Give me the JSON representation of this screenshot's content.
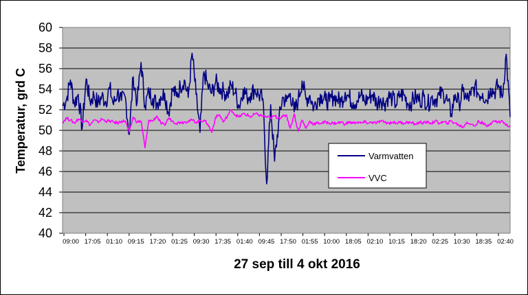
{
  "chart_data": {
    "type": "line",
    "title": "",
    "xlabel": "27 sep till 4 okt 2016",
    "ylabel": "Temperatur, grd C",
    "ylim": [
      40,
      60
    ],
    "y_ticks": [
      "40",
      "42",
      "44",
      "46",
      "48",
      "50",
      "52",
      "54",
      "56",
      "58",
      "60"
    ],
    "x_tick_labels": [
      "09:00",
      "17:05",
      "01:10",
      "09:15",
      "17:20",
      "01:25",
      "09:30",
      "17:35",
      "01:40",
      "09:45",
      "17:50",
      "01:55",
      "10:00",
      "18:05",
      "02:10",
      "10:15",
      "18:20",
      "02:25",
      "10:30",
      "18:35",
      "02:40"
    ],
    "grid": "horizontal",
    "legend_position": "lower-right",
    "plot_background": "#c0c0c0",
    "series": [
      {
        "name": "Varmvatten",
        "color": "#000080",
        "values": [
          52.4,
          53.0,
          54.9,
          52.6,
          53.5,
          50.2,
          55.0,
          52.8,
          53.4,
          52.6,
          53.3,
          52.8,
          54.1,
          52.5,
          53.7,
          52.9,
          53.2,
          49.6,
          55.2,
          52.7,
          56.6,
          52.4,
          53.7,
          53.1,
          52.6,
          53.3,
          53.6,
          51.7,
          54.0,
          53.3,
          54.3,
          54.9,
          53.2,
          57.5,
          53.5,
          49.8,
          55.7,
          54.3,
          53.6,
          54.7,
          54.1,
          53.8,
          53.5,
          54.4,
          53.6,
          52.3,
          54.0,
          53.2,
          53.6,
          54.0,
          53.4,
          53.1,
          44.8,
          52.5,
          47.0,
          50.6,
          53.2,
          52.8,
          53.6,
          51.8,
          52.9,
          54.8,
          53.0,
          53.4,
          52.2,
          53.1,
          53.4,
          52.9,
          52.8,
          53.3,
          53.0,
          52.8,
          53.7,
          53.2,
          52.7,
          52.9,
          53.4,
          52.8,
          53.2,
          53.5,
          52.6,
          53.1,
          52.6,
          53.3,
          53.1,
          52.5,
          53.5,
          53.4,
          52.6,
          52.8,
          53.2,
          52.9,
          53.3,
          52.5,
          53.2,
          53.0,
          53.4,
          53.6,
          52.9,
          51.6,
          53.5,
          52.6,
          53.8,
          53.0,
          53.4,
          54.3,
          53.5,
          53.6,
          52.9,
          54.1,
          53.7,
          54.4,
          53.2,
          57.4,
          51.3
        ]
      },
      {
        "name": "VVC",
        "color": "#ff00ff",
        "values": [
          50.8,
          51.2,
          51.0,
          50.7,
          51.1,
          50.9,
          51.0,
          50.5,
          51.0,
          50.8,
          51.1,
          50.9,
          50.9,
          50.8,
          50.7,
          50.9,
          50.9,
          49.8,
          51.3,
          50.8,
          50.9,
          48.3,
          51.0,
          50.9,
          51.4,
          50.7,
          50.5,
          51.2,
          50.9,
          50.7,
          50.8,
          50.8,
          50.9,
          51.0,
          50.8,
          50.9,
          51.0,
          50.6,
          49.8,
          51.3,
          51.5,
          50.8,
          51.4,
          52.0,
          51.5,
          51.3,
          51.6,
          51.5,
          51.3,
          51.6,
          51.5,
          51.4,
          51.3,
          51.2,
          51.4,
          51.2,
          51.3,
          51.5,
          50.2,
          51.6,
          49.9,
          51.0,
          50.2,
          50.9,
          50.6,
          50.7,
          50.7,
          50.8,
          50.7,
          50.7,
          50.7,
          50.8,
          50.6,
          50.8,
          50.7,
          50.8,
          50.7,
          50.8,
          50.7,
          50.8,
          50.7,
          50.9,
          50.8,
          50.7,
          50.8,
          50.7,
          50.8,
          50.7,
          50.8,
          50.7,
          50.6,
          50.8,
          50.7,
          50.8,
          50.7,
          50.9,
          50.7,
          50.8,
          50.7,
          50.9,
          50.7,
          50.5,
          50.3,
          50.8,
          50.6,
          50.4,
          50.9,
          50.7,
          50.4,
          50.7,
          50.9,
          50.8,
          50.9,
          50.5,
          50.4
        ]
      }
    ]
  }
}
